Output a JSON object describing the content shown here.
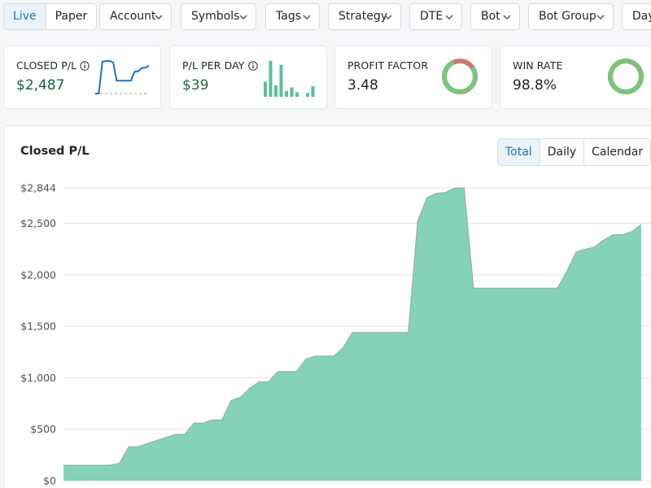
{
  "filters": {
    "mode": {
      "options": [
        "Live",
        "Paper"
      ],
      "selected": "Live"
    },
    "dropdowns": [
      "Account",
      "Symbols",
      "Tags",
      "Strategy",
      "DTE",
      "Bot",
      "Bot Group",
      "Day"
    ]
  },
  "kpis": {
    "closed_pl": {
      "label": "CLOSED P/L",
      "value": "$2,487",
      "sparkline": [
        0,
        0,
        2700,
        2750,
        2760,
        2650,
        1100,
        1080,
        1090,
        1095,
        1100,
        1850,
        1900,
        2150,
        2200,
        2350
      ],
      "baseline": "dashed"
    },
    "pl_per_day": {
      "label": "P/L PER DAY",
      "value": "$39",
      "bars": [
        40,
        95,
        30,
        85,
        15,
        25,
        12,
        0,
        10,
        28
      ]
    },
    "profit_factor": {
      "label": "PROFIT FACTOR",
      "value": "3.48",
      "ring": {
        "win_fraction": 0.777,
        "win_color": "#7cc47e",
        "loss_color": "#c97b6d"
      }
    },
    "win_rate": {
      "label": "WIN RATE",
      "value": "98.8%",
      "ring": {
        "win_fraction": 0.988,
        "win_color": "#7cc47e",
        "loss_color": "#c97b6d"
      }
    }
  },
  "main_chart": {
    "title": "Closed P/L",
    "views": [
      "Total",
      "Daily",
      "Calendar"
    ],
    "selected_view": "Total"
  },
  "chart_data": {
    "type": "area",
    "title": "Closed P/L",
    "xlabel": "",
    "ylabel": "",
    "ylim": [
      0,
      2844
    ],
    "y_ticks": [
      0,
      500,
      1000,
      1500,
      2000,
      2500,
      2844
    ],
    "y_tick_labels": [
      "$0",
      "$500",
      "$1,000",
      "$1,500",
      "$2,000",
      "$2,500",
      "$2,844"
    ],
    "grid": true,
    "color": "#84d3b8",
    "x": [
      0,
      1,
      2,
      3,
      4,
      5,
      6,
      7,
      8,
      9,
      10,
      11,
      12,
      13,
      14,
      15,
      16,
      17,
      18,
      19,
      20,
      21,
      22,
      23,
      24,
      25,
      26,
      27,
      28,
      29,
      30,
      31,
      32,
      33,
      34,
      35,
      36,
      37,
      38,
      39,
      40,
      41,
      42,
      43,
      44,
      45,
      46,
      47,
      48,
      49,
      50,
      51,
      52,
      53,
      54,
      55,
      56,
      57,
      58,
      59,
      60,
      61,
      62
    ],
    "values": [
      150,
      150,
      150,
      150,
      150,
      150,
      170,
      330,
      330,
      360,
      390,
      420,
      450,
      450,
      560,
      560,
      590,
      590,
      780,
      810,
      900,
      960,
      960,
      1060,
      1060,
      1060,
      1180,
      1210,
      1210,
      1210,
      1290,
      1440,
      1440,
      1440,
      1440,
      1440,
      1440,
      1440,
      2520,
      2750,
      2790,
      2800,
      2844,
      2844,
      1870,
      1870,
      1870,
      1870,
      1870,
      1870,
      1870,
      1870,
      1870,
      1870,
      2030,
      2220,
      2250,
      2270,
      2340,
      2390,
      2390,
      2420,
      2487
    ]
  }
}
